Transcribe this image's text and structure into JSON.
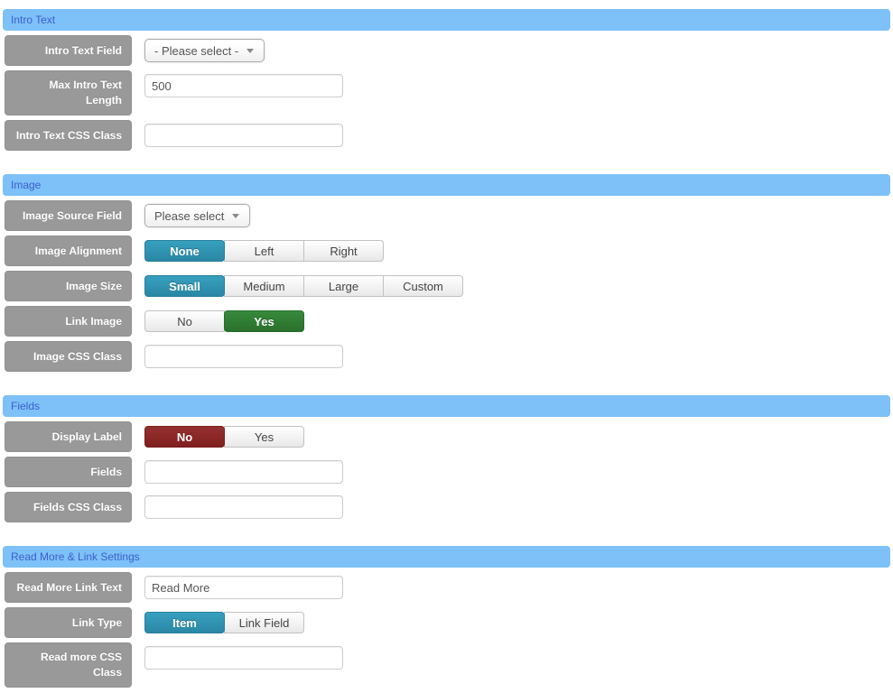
{
  "colors": {
    "section_header_bg": "#7dc1f8",
    "section_header_text": "#3d5ecd",
    "label_bg": "#999999",
    "active_teal": "#2b8fad",
    "active_green": "#2e7d32",
    "active_red": "#8a2727"
  },
  "icons": {
    "select_arrow": "chevron-down-icon"
  },
  "sections": [
    {
      "title": "Intro Text",
      "rows": [
        {
          "label": "Intro Text Field",
          "type": "select",
          "value": "- Please select -"
        },
        {
          "label": "Max Intro Text Length",
          "type": "input",
          "value": "500"
        },
        {
          "label": "Intro Text CSS Class",
          "type": "input",
          "value": ""
        }
      ]
    },
    {
      "title": "Image",
      "rows": [
        {
          "label": "Image Source Field",
          "type": "select",
          "value": "Please select"
        },
        {
          "label": "Image Alignment",
          "type": "buttons",
          "options": [
            {
              "label": "None",
              "active": true,
              "color": "teal"
            },
            {
              "label": "Left"
            },
            {
              "label": "Right"
            }
          ]
        },
        {
          "label": "Image Size",
          "type": "buttons",
          "options": [
            {
              "label": "Small",
              "active": true,
              "color": "teal"
            },
            {
              "label": "Medium"
            },
            {
              "label": "Large"
            },
            {
              "label": "Custom"
            }
          ]
        },
        {
          "label": "Link Image",
          "type": "buttons",
          "options": [
            {
              "label": "No"
            },
            {
              "label": "Yes",
              "active": true,
              "color": "green"
            }
          ]
        },
        {
          "label": "Image CSS Class",
          "type": "input",
          "value": ""
        }
      ]
    },
    {
      "title": "Fields",
      "rows": [
        {
          "label": "Display Label",
          "type": "buttons",
          "options": [
            {
              "label": "No",
              "active": true,
              "color": "red"
            },
            {
              "label": "Yes"
            }
          ]
        },
        {
          "label": "Fields",
          "type": "input",
          "value": ""
        },
        {
          "label": "Fields CSS Class",
          "type": "input",
          "value": ""
        }
      ]
    },
    {
      "title": "Read More & Link Settings",
      "rows": [
        {
          "label": "Read More Link Text",
          "type": "input",
          "value": "Read More"
        },
        {
          "label": "Link Type",
          "type": "buttons",
          "options": [
            {
              "label": "Item",
              "active": true,
              "color": "teal"
            },
            {
              "label": "Link Field"
            }
          ]
        },
        {
          "label": "Read more CSS Class",
          "type": "input",
          "value": ""
        }
      ]
    }
  ]
}
